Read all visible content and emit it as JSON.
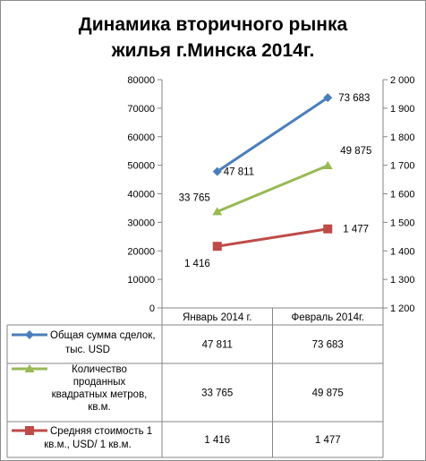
{
  "chart_data": {
    "type": "line",
    "title": [
      "Динамика вторичного рынка",
      "жилья г.Минска 2014г."
    ],
    "categories": [
      "Январь 2014 г.",
      "Февраль 2014г."
    ],
    "y_left": {
      "min": 0,
      "max": 80000,
      "ticks": [
        "0",
        "10000",
        "20000",
        "30000",
        "40000",
        "50000",
        "60000",
        "70000",
        "80000"
      ]
    },
    "y_right": {
      "min": 1200,
      "max": 2000,
      "ticks": [
        "1 200",
        "1 300",
        "1 400",
        "1 500",
        "1 600",
        "1 700",
        "1 800",
        "1 900",
        "2 000"
      ]
    },
    "series": [
      {
        "name": "Общая сумма сделок, тыс. USD",
        "legend_lines": [
          "Общая сумма сделок,",
          "тыс. USD"
        ],
        "axis": "left",
        "values": [
          47811,
          73683
        ],
        "labels": [
          "47 811",
          "73 683"
        ],
        "color": "#4a7ebb",
        "marker": "diamond"
      },
      {
        "name": "Количество проданных квадратных метров, кв.м.",
        "legend_lines": [
          "Количество",
          "проданных",
          "квадратных метров,",
          "кв.м."
        ],
        "axis": "left",
        "values": [
          33765,
          49875
        ],
        "labels": [
          "33 765",
          "49 875"
        ],
        "color": "#98b954",
        "marker": "triangle"
      },
      {
        "name": "Средняя стоимость 1 кв.м., USD/ 1 кв.м.",
        "legend_lines": [
          "Средняя  стоимость 1",
          "кв.м.,  USD/ 1 кв.м."
        ],
        "axis": "right",
        "values": [
          1416,
          1477
        ],
        "labels": [
          "1 416",
          "1 477"
        ],
        "color": "#be4b48",
        "marker": "square"
      }
    ],
    "grid": false,
    "legend": "table"
  }
}
